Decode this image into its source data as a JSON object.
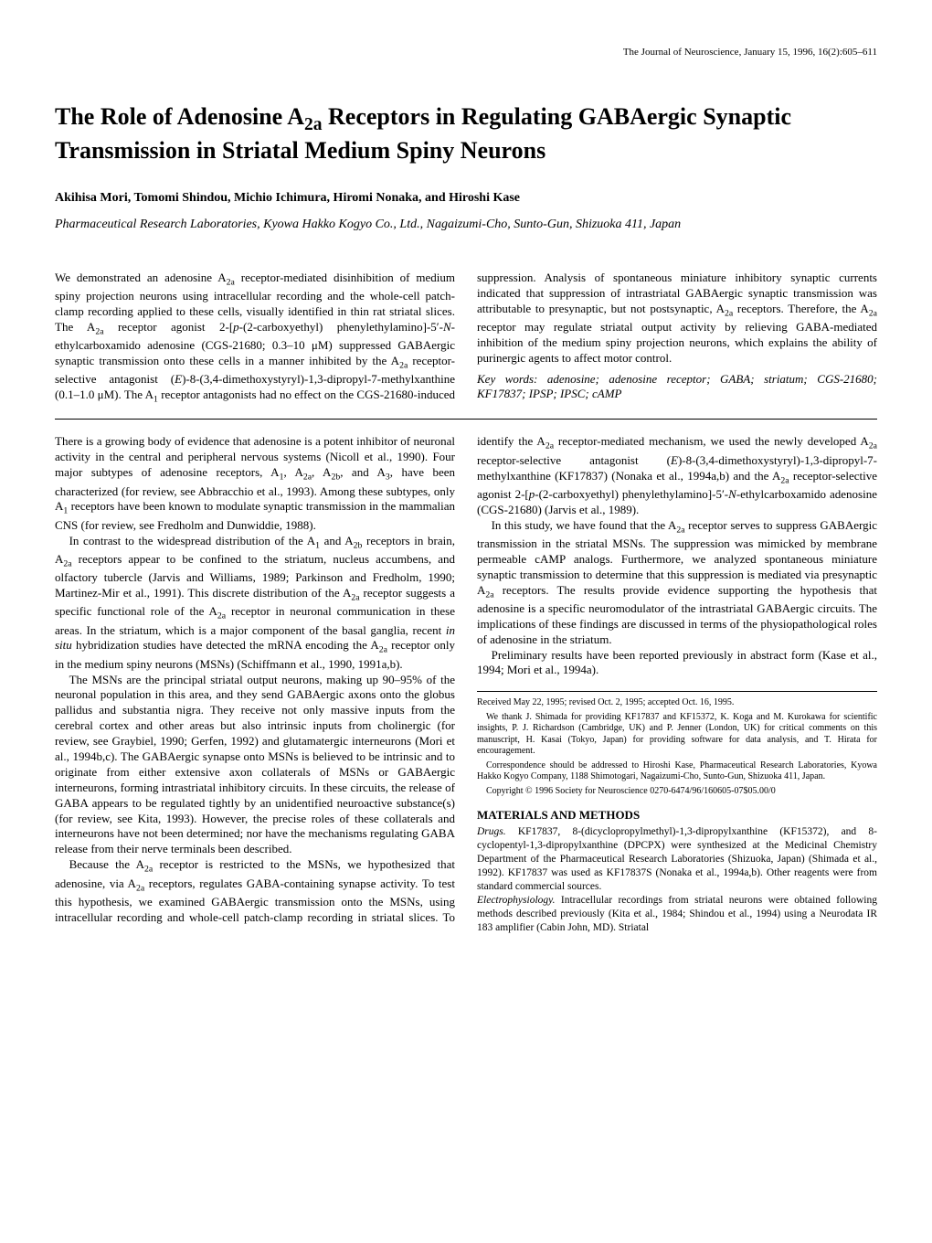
{
  "journal_header": "The Journal of Neuroscience, January 15, 1996, 16(2):605–611",
  "title_html": "The Role of Adenosine A<sub>2a</sub> Receptors in Regulating GABAergic Synaptic Transmission in Striatal Medium Spiny Neurons",
  "authors": "Akihisa Mori, Tomomi Shindou, Michio Ichimura, Hiromi Nonaka, and Hiroshi Kase",
  "affiliation": "Pharmaceutical Research Laboratories, Kyowa Hakko Kogyo Co., Ltd., Nagaizumi-Cho, Sunto-Gun, Shizuoka 411, Japan",
  "abstract_html": "We demonstrated an adenosine A<sub>2a</sub> receptor-mediated disinhibition of medium spiny projection neurons using intracellular recording and the whole-cell patch-clamp recording applied to these cells, visually identified in thin rat striatal slices. The A<sub>2a</sub> receptor agonist 2-[<i>p</i>-(2-carboxyethyl) phenylethylamino]-5′-<i>N</i>-ethylcarboxamido adenosine (CGS-21680; 0.3–10 μM) suppressed GABAergic synaptic transmission onto these cells in a manner inhibited by the A<sub>2a</sub> receptor-selective antagonist (<i>E</i>)-8-(3,4-dimethoxystyryl)-1,3-dipropyl-7-methylxanthine (0.1–1.0 μM). The A<sub>1</sub> receptor antagonists had no effect on the CGS-21680-induced suppression. Analysis of spontaneous miniature inhibitory synaptic currents indicated that suppression of intrastriatal GABAergic synaptic transmission was attributable to presynaptic, but not postsynaptic, A<sub>2a</sub> receptors. Therefore, the A<sub>2a</sub> receptor may regulate striatal output activity by relieving GABA-mediated inhibition of the medium spiny projection neurons, which explains the ability of purinergic agents to affect motor control.",
  "keywords": "Key words: adenosine; adenosine receptor; GABA; striatum; CGS-21680; KF17837; IPSP; IPSC; cAMP",
  "body": {
    "p1_html": "There is a growing body of evidence that adenosine is a potent inhibitor of neuronal activity in the central and peripheral nervous systems (Nicoll et al., 1990). Four major subtypes of adenosine receptors, A<sub>1</sub>, A<sub>2a</sub>, A<sub>2b</sub>, and A<sub>3</sub>, have been characterized (for review, see Abbracchio et al., 1993). Among these subtypes, only A<sub>1</sub> receptors have been known to modulate synaptic transmission in the mammalian CNS (for review, see Fredholm and Dunwiddie, 1988).",
    "p2_html": "In contrast to the widespread distribution of the A<sub>1</sub> and A<sub>2b</sub> receptors in brain, A<sub>2a</sub> receptors appear to be confined to the striatum, nucleus accumbens, and olfactory tubercle (Jarvis and Williams, 1989; Parkinson and Fredholm, 1990; Martinez-Mir et al., 1991). This discrete distribution of the A<sub>2a</sub> receptor suggests a specific functional role of the A<sub>2a</sub> receptor in neuronal communication in these areas. In the striatum, which is a major component of the basal ganglia, recent <i>in situ</i> hybridization studies have detected the mRNA encoding the A<sub>2a</sub> receptor only in the medium spiny neurons (MSNs) (Schiffmann et al., 1990, 1991a,b).",
    "p3_html": "The MSNs are the principal striatal output neurons, making up 90–95% of the neuronal population in this area, and they send GABAergic axons onto the globus pallidus and substantia nigra. They receive not only massive inputs from the cerebral cortex and other areas but also intrinsic inputs from cholinergic (for review, see Graybiel, 1990; Gerfen, 1992) and glutamatergic interneurons (Mori et al., 1994b,c). The GABAergic synapse onto MSNs is believed to be intrinsic and to originate from either extensive axon collaterals of MSNs or GABAergic interneurons, forming intrastriatal inhibitory circuits. In these circuits, the release of GABA appears to be regulated tightly by an unidentified neuroactive substance(s) (for review, see Kita, 1993). However, the precise roles of these collaterals and interneurons have not been determined; nor have the mechanisms regulating GABA release from their nerve terminals been described.",
    "p4_html": "Because the A<sub>2a</sub> receptor is restricted to the MSNs, we hypothesized that adenosine, via A<sub>2a</sub> receptors, regulates GABA-containing synapse activity. To test this hypothesis, we examined GABAergic transmission onto the MSNs, using intracellular recording and whole-cell patch-clamp recording in striatal slices. To identify the A<sub>2a</sub> receptor-mediated mechanism, we used the newly developed A<sub>2a</sub> receptor-selective antagonist (<i>E</i>)-8-(3,4-dimethoxystyryl)-1,3-dipropyl-7-methylxanthine (KF17837) (Nonaka et al., 1994a,b) and the A<sub>2a</sub> receptor-selective agonist 2-[<i>p</i>-(2-carboxyethyl) phenylethylamino]-5′-<i>N</i>-ethylcarboxamido adenosine (CGS-21680) (Jarvis et al., 1989).",
    "p5_html": "In this study, we have found that the A<sub>2a</sub> receptor serves to suppress GABAergic transmission in the striatal MSNs. The suppression was mimicked by membrane permeable cAMP analogs. Furthermore, we analyzed spontaneous miniature synaptic transmission to determine that this suppression is mediated via presynaptic A<sub>2a</sub> receptors. The results provide evidence supporting the hypothesis that adenosine is a specific neuromodulator of the intrastriatal GABAergic circuits. The implications of these findings are discussed in terms of the physiopathological roles of adenosine in the striatum.",
    "p6_html": "Preliminary results have been reported previously in abstract form (Kase et al., 1994; Mori et al., 1994a)."
  },
  "methods_heading": "MATERIALS AND METHODS",
  "methods": {
    "drugs_html": "<span class=\"runin\">Drugs.</span> KF17837, 8-(dicyclopropylmethyl)-1,3-dipropylxanthine (KF15372), and 8-cyclopentyl-1,3-dipropylxanthine (DPCPX) were synthesized at the Medicinal Chemistry Department of the Pharmaceutical Research Laboratories (Shizuoka, Japan) (Shimada et al., 1992). KF17837 was used as KF17837S (Nonaka et al., 1994a,b). Other reagents were from standard commercial sources.",
    "ephys_html": "<span class=\"runin\">Electrophysiology.</span> Intracellular recordings from striatal neurons were obtained following methods described previously (Kita et al., 1984; Shindou et al., 1994) using a Neurodata IR 183 amplifier (Cabin John, MD). Striatal"
  },
  "footnotes": {
    "received": "Received May 22, 1995; revised Oct. 2, 1995; accepted Oct. 16, 1995.",
    "thanks": "We thank J. Shimada for providing KF17837 and KF15372, K. Koga and M. Kurokawa for scientific insights, P. J. Richardson (Cambridge, UK) and P. Jenner (London, UK) for critical comments on this manuscript, H. Kasai (Tokyo, Japan) for providing software for data analysis, and T. Hirata for encouragement.",
    "correspondence": "Correspondence should be addressed to Hiroshi Kase, Pharmaceutical Research Laboratories, Kyowa Hakko Kogyo Company, 1188 Shimotogari, Nagaizumi-Cho, Sunto-Gun, Shizuoka 411, Japan.",
    "copyright": "Copyright © 1996 Society for Neuroscience  0270-6474/96/160605-07$05.00/0"
  }
}
